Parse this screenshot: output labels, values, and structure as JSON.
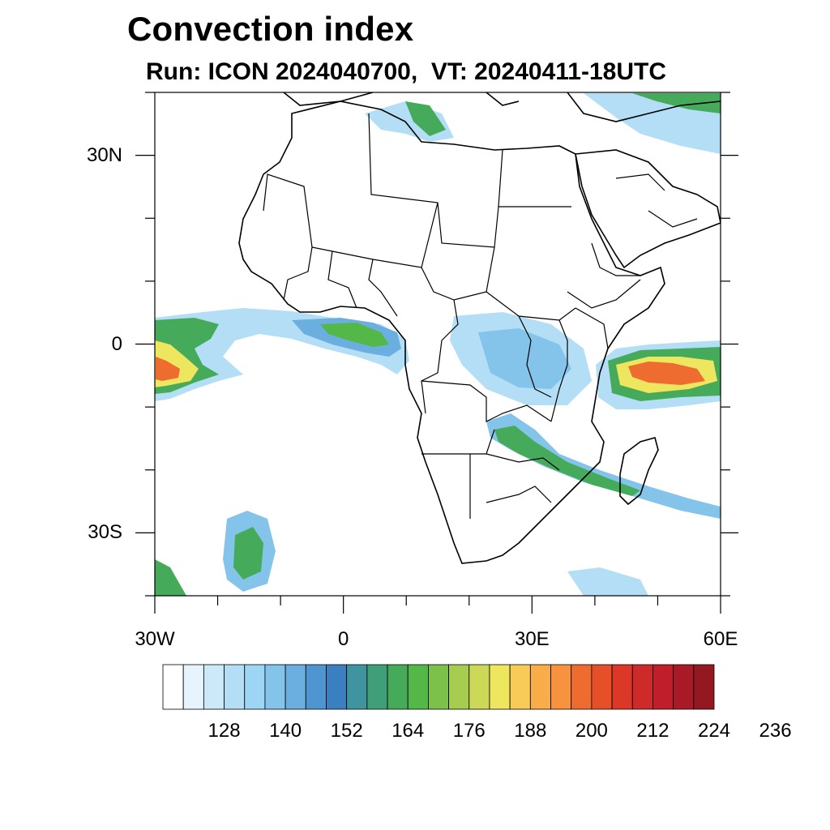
{
  "title": "Convection index",
  "subtitle": "Run: ICON 2024040700,  VT: 20240411-18UTC",
  "map": {
    "lon_range": [
      -30,
      60
    ],
    "lat_range": [
      -40,
      40
    ],
    "lat_ticks": [
      {
        "lat": 30,
        "label": "30N"
      },
      {
        "lat": 0,
        "label": "0"
      },
      {
        "lat": -30,
        "label": "30S"
      }
    ],
    "lon_ticks": [
      {
        "lon": -30,
        "label": "30W"
      },
      {
        "lon": 0,
        "label": "0"
      },
      {
        "lon": 30,
        "label": "30E"
      },
      {
        "lon": 60,
        "label": "60E"
      }
    ]
  },
  "colorbar": {
    "colors": [
      "#ffffff",
      "#e6f5fd",
      "#cbe9f8",
      "#b3def5",
      "#9dd6f4",
      "#84c3ea",
      "#6baee0",
      "#4f95cf",
      "#3a7fc0",
      "#3f949f",
      "#3f9f78",
      "#45ab5a",
      "#53b848",
      "#7cc24a",
      "#a6cc50",
      "#ccd958",
      "#eee65e",
      "#f8cb58",
      "#f8ad48",
      "#f7923e",
      "#ef6c30",
      "#e65028",
      "#dc3828",
      "#cf2a2a",
      "#c01e2a",
      "#aa1a26",
      "#941820"
    ],
    "labels": [
      "128",
      "140",
      "152",
      "164",
      "176",
      "188",
      "200",
      "212",
      "224",
      "236"
    ]
  }
}
